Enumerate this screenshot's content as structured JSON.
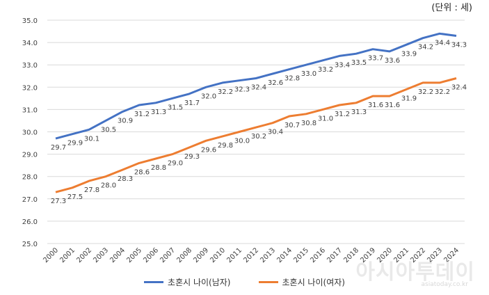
{
  "unit_label": "(단위 : 세)",
  "watermark": {
    "text": "아시아투데이",
    "sub": "asiatoday.co.kr"
  },
  "colors": {
    "male": "#4472C4",
    "female": "#ED7D31",
    "grid": "#d9d9d9",
    "text": "#404040"
  },
  "chart_data": {
    "type": "line",
    "x": [
      "2000",
      "2001",
      "2002",
      "2003",
      "2004",
      "2005",
      "2006",
      "2007",
      "2008",
      "2009",
      "2010",
      "2011",
      "2012",
      "2013",
      "2014",
      "2015",
      "2016",
      "2017",
      "2018",
      "2019",
      "2020",
      "2021",
      "2022",
      "2023",
      "2024"
    ],
    "series": [
      {
        "name": "초혼시 나이(남자)",
        "color": "#4472C4",
        "values": [
          29.7,
          29.9,
          30.1,
          30.5,
          30.9,
          31.2,
          31.3,
          31.5,
          31.7,
          32.0,
          32.2,
          32.3,
          32.4,
          32.6,
          32.8,
          33.0,
          33.2,
          33.4,
          33.5,
          33.7,
          33.6,
          33.9,
          34.2,
          34.4,
          34.3
        ]
      },
      {
        "name": "초혼시 나이(여자)",
        "color": "#ED7D31",
        "values": [
          27.3,
          27.5,
          27.8,
          28.0,
          28.3,
          28.6,
          28.8,
          29.0,
          29.3,
          29.6,
          29.8,
          30.0,
          30.2,
          30.4,
          30.7,
          30.8,
          31.0,
          31.2,
          31.3,
          31.6,
          31.6,
          31.9,
          32.2,
          32.2,
          32.4
        ]
      }
    ],
    "yticks": [
      "25.0",
      "26.0",
      "27.0",
      "28.0",
      "29.0",
      "30.0",
      "31.0",
      "32.0",
      "33.0",
      "34.0",
      "35.0"
    ],
    "ylim": [
      25,
      35
    ],
    "grid": true,
    "legend": "bottom"
  }
}
